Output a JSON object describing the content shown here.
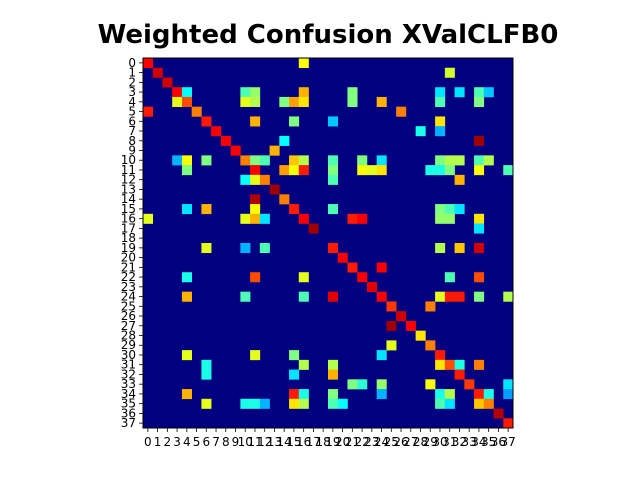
{
  "chart_data": {
    "type": "heatmap",
    "title": "Weighted Confusion XValCLFB0",
    "colormap": "jet",
    "value_range": [
      0,
      1
    ],
    "row_labels": [
      "0",
      "1",
      "2",
      "3",
      "4",
      "5",
      "6",
      "7",
      "8",
      "9",
      "10",
      "11",
      "12",
      "13",
      "14",
      "15",
      "16",
      "17",
      "18",
      "19",
      "20",
      "21",
      "22",
      "23",
      "24",
      "25",
      "26",
      "27",
      "28",
      "29",
      "30",
      "31",
      "32",
      "33",
      "34",
      "35",
      "36",
      "37"
    ],
    "col_labels": [
      "0",
      "1",
      "2",
      "3",
      "4",
      "5",
      "6",
      "7",
      "8",
      "9",
      "10",
      "11",
      "12",
      "13",
      "14",
      "15",
      "16",
      "17",
      "18",
      "19",
      "20",
      "21",
      "22",
      "23",
      "24",
      "25",
      "26",
      "27",
      "28",
      "29",
      "30",
      "31",
      "32",
      "33",
      "34",
      "35",
      "36",
      "37"
    ],
    "cells": [
      {
        "r": 0,
        "c": 0,
        "v": 0.88
      },
      {
        "r": 0,
        "c": 16,
        "v": 0.62
      },
      {
        "r": 1,
        "c": 1,
        "v": 0.92
      },
      {
        "r": 1,
        "c": 31,
        "v": 0.58
      },
      {
        "r": 2,
        "c": 2,
        "v": 0.92
      },
      {
        "r": 3,
        "c": 3,
        "v": 0.88
      },
      {
        "r": 3,
        "c": 4,
        "v": 0.38
      },
      {
        "r": 3,
        "c": 10,
        "v": 0.45
      },
      {
        "r": 3,
        "c": 11,
        "v": 0.52
      },
      {
        "r": 3,
        "c": 16,
        "v": 0.7
      },
      {
        "r": 3,
        "c": 21,
        "v": 0.5
      },
      {
        "r": 3,
        "c": 30,
        "v": 0.35
      },
      {
        "r": 3,
        "c": 32,
        "v": 0.35
      },
      {
        "r": 3,
        "c": 34,
        "v": 0.45
      },
      {
        "r": 3,
        "c": 35,
        "v": 0.32
      },
      {
        "r": 4,
        "c": 3,
        "v": 0.6
      },
      {
        "r": 4,
        "c": 4,
        "v": 0.8
      },
      {
        "r": 4,
        "c": 10,
        "v": 0.6
      },
      {
        "r": 4,
        "c": 11,
        "v": 0.55
      },
      {
        "r": 4,
        "c": 14,
        "v": 0.5
      },
      {
        "r": 4,
        "c": 15,
        "v": 0.72
      },
      {
        "r": 4,
        "c": 16,
        "v": 0.65
      },
      {
        "r": 4,
        "c": 21,
        "v": 0.5
      },
      {
        "r": 4,
        "c": 24,
        "v": 0.7
      },
      {
        "r": 4,
        "c": 30,
        "v": 0.45
      },
      {
        "r": 4,
        "c": 34,
        "v": 0.5
      },
      {
        "r": 5,
        "c": 0,
        "v": 0.85
      },
      {
        "r": 5,
        "c": 5,
        "v": 0.75
      },
      {
        "r": 5,
        "c": 26,
        "v": 0.75
      },
      {
        "r": 6,
        "c": 6,
        "v": 0.85
      },
      {
        "r": 6,
        "c": 11,
        "v": 0.7
      },
      {
        "r": 6,
        "c": 15,
        "v": 0.5
      },
      {
        "r": 6,
        "c": 19,
        "v": 0.32
      },
      {
        "r": 6,
        "c": 30,
        "v": 0.65
      },
      {
        "r": 7,
        "c": 7,
        "v": 0.88
      },
      {
        "r": 7,
        "c": 28,
        "v": 0.4
      },
      {
        "r": 7,
        "c": 30,
        "v": 0.3
      },
      {
        "r": 8,
        "c": 8,
        "v": 0.88
      },
      {
        "r": 8,
        "c": 14,
        "v": 0.38
      },
      {
        "r": 8,
        "c": 34,
        "v": 0.97
      },
      {
        "r": 9,
        "c": 9,
        "v": 0.88
      },
      {
        "r": 9,
        "c": 13,
        "v": 0.7
      },
      {
        "r": 10,
        "c": 3,
        "v": 0.3
      },
      {
        "r": 10,
        "c": 4,
        "v": 0.62
      },
      {
        "r": 10,
        "c": 6,
        "v": 0.5
      },
      {
        "r": 10,
        "c": 10,
        "v": 0.75
      },
      {
        "r": 10,
        "c": 11,
        "v": 0.5
      },
      {
        "r": 10,
        "c": 12,
        "v": 0.45
      },
      {
        "r": 10,
        "c": 15,
        "v": 0.68
      },
      {
        "r": 10,
        "c": 16,
        "v": 0.55
      },
      {
        "r": 10,
        "c": 19,
        "v": 0.45
      },
      {
        "r": 10,
        "c": 22,
        "v": 0.5
      },
      {
        "r": 10,
        "c": 24,
        "v": 0.35
      },
      {
        "r": 10,
        "c": 30,
        "v": 0.5
      },
      {
        "r": 10,
        "c": 31,
        "v": 0.55
      },
      {
        "r": 10,
        "c": 32,
        "v": 0.55
      },
      {
        "r": 10,
        "c": 34,
        "v": 0.45
      },
      {
        "r": 10,
        "c": 35,
        "v": 0.55
      },
      {
        "r": 11,
        "c": 4,
        "v": 0.5
      },
      {
        "r": 11,
        "c": 11,
        "v": 0.88
      },
      {
        "r": 11,
        "c": 14,
        "v": 0.72
      },
      {
        "r": 11,
        "c": 15,
        "v": 0.62
      },
      {
        "r": 11,
        "c": 16,
        "v": 0.85
      },
      {
        "r": 11,
        "c": 19,
        "v": 0.5
      },
      {
        "r": 11,
        "c": 22,
        "v": 0.62
      },
      {
        "r": 11,
        "c": 23,
        "v": 0.6
      },
      {
        "r": 11,
        "c": 24,
        "v": 0.65
      },
      {
        "r": 11,
        "c": 29,
        "v": 0.4
      },
      {
        "r": 11,
        "c": 30,
        "v": 0.4
      },
      {
        "r": 11,
        "c": 31,
        "v": 0.5
      },
      {
        "r": 11,
        "c": 34,
        "v": 0.62
      },
      {
        "r": 11,
        "c": 37,
        "v": 0.45
      },
      {
        "r": 12,
        "c": 10,
        "v": 0.38
      },
      {
        "r": 12,
        "c": 11,
        "v": 0.6
      },
      {
        "r": 12,
        "c": 12,
        "v": 0.75
      },
      {
        "r": 12,
        "c": 19,
        "v": 0.45
      },
      {
        "r": 12,
        "c": 32,
        "v": 0.7
      },
      {
        "r": 13,
        "c": 13,
        "v": 0.97
      },
      {
        "r": 14,
        "c": 11,
        "v": 0.95
      },
      {
        "r": 14,
        "c": 14,
        "v": 0.75
      },
      {
        "r": 15,
        "c": 4,
        "v": 0.35
      },
      {
        "r": 15,
        "c": 6,
        "v": 0.7
      },
      {
        "r": 15,
        "c": 11,
        "v": 0.62
      },
      {
        "r": 15,
        "c": 15,
        "v": 0.85
      },
      {
        "r": 15,
        "c": 19,
        "v": 0.45
      },
      {
        "r": 15,
        "c": 30,
        "v": 0.5
      },
      {
        "r": 15,
        "c": 31,
        "v": 0.45
      },
      {
        "r": 15,
        "c": 32,
        "v": 0.35
      },
      {
        "r": 16,
        "c": 0,
        "v": 0.6
      },
      {
        "r": 16,
        "c": 10,
        "v": 0.6
      },
      {
        "r": 16,
        "c": 11,
        "v": 0.7
      },
      {
        "r": 16,
        "c": 12,
        "v": 0.35
      },
      {
        "r": 16,
        "c": 16,
        "v": 0.88
      },
      {
        "r": 16,
        "c": 21,
        "v": 0.85
      },
      {
        "r": 16,
        "c": 22,
        "v": 0.88
      },
      {
        "r": 16,
        "c": 30,
        "v": 0.52
      },
      {
        "r": 16,
        "c": 31,
        "v": 0.52
      },
      {
        "r": 16,
        "c": 34,
        "v": 0.65
      },
      {
        "r": 17,
        "c": 17,
        "v": 0.97
      },
      {
        "r": 17,
        "c": 34,
        "v": 0.35
      },
      {
        "r": 19,
        "c": 6,
        "v": 0.6
      },
      {
        "r": 19,
        "c": 10,
        "v": 0.3
      },
      {
        "r": 19,
        "c": 12,
        "v": 0.45
      },
      {
        "r": 19,
        "c": 19,
        "v": 0.85
      },
      {
        "r": 19,
        "c": 30,
        "v": 0.55
      },
      {
        "r": 19,
        "c": 32,
        "v": 0.68
      },
      {
        "r": 19,
        "c": 34,
        "v": 0.92
      },
      {
        "r": 20,
        "c": 20,
        "v": 0.88
      },
      {
        "r": 21,
        "c": 21,
        "v": 0.85
      },
      {
        "r": 21,
        "c": 24,
        "v": 0.88
      },
      {
        "r": 22,
        "c": 4,
        "v": 0.4
      },
      {
        "r": 22,
        "c": 11,
        "v": 0.8
      },
      {
        "r": 22,
        "c": 16,
        "v": 0.6
      },
      {
        "r": 22,
        "c": 22,
        "v": 0.88
      },
      {
        "r": 22,
        "c": 31,
        "v": 0.45
      },
      {
        "r": 22,
        "c": 34,
        "v": 0.8
      },
      {
        "r": 23,
        "c": 23,
        "v": 0.9
      },
      {
        "r": 24,
        "c": 4,
        "v": 0.7
      },
      {
        "r": 24,
        "c": 10,
        "v": 0.45
      },
      {
        "r": 24,
        "c": 16,
        "v": 0.45
      },
      {
        "r": 24,
        "c": 19,
        "v": 0.9
      },
      {
        "r": 24,
        "c": 24,
        "v": 0.88
      },
      {
        "r": 24,
        "c": 30,
        "v": 0.6
      },
      {
        "r": 24,
        "c": 31,
        "v": 0.85
      },
      {
        "r": 24,
        "c": 32,
        "v": 0.85
      },
      {
        "r": 24,
        "c": 34,
        "v": 0.5
      },
      {
        "r": 24,
        "c": 37,
        "v": 0.55
      },
      {
        "r": 25,
        "c": 25,
        "v": 0.82
      },
      {
        "r": 25,
        "c": 29,
        "v": 0.75
      },
      {
        "r": 26,
        "c": 26,
        "v": 0.92
      },
      {
        "r": 27,
        "c": 25,
        "v": 0.97
      },
      {
        "r": 27,
        "c": 27,
        "v": 0.88
      },
      {
        "r": 28,
        "c": 28,
        "v": 0.65
      },
      {
        "r": 29,
        "c": 25,
        "v": 0.6
      },
      {
        "r": 29,
        "c": 29,
        "v": 0.75
      },
      {
        "r": 30,
        "c": 4,
        "v": 0.6
      },
      {
        "r": 30,
        "c": 11,
        "v": 0.6
      },
      {
        "r": 30,
        "c": 15,
        "v": 0.5
      },
      {
        "r": 30,
        "c": 24,
        "v": 0.35
      },
      {
        "r": 30,
        "c": 30,
        "v": 0.85
      },
      {
        "r": 31,
        "c": 6,
        "v": 0.4
      },
      {
        "r": 31,
        "c": 16,
        "v": 0.55
      },
      {
        "r": 31,
        "c": 19,
        "v": 0.55
      },
      {
        "r": 31,
        "c": 30,
        "v": 0.65
      },
      {
        "r": 31,
        "c": 31,
        "v": 0.8
      },
      {
        "r": 31,
        "c": 32,
        "v": 0.4
      },
      {
        "r": 31,
        "c": 34,
        "v": 0.75
      },
      {
        "r": 32,
        "c": 6,
        "v": 0.4
      },
      {
        "r": 32,
        "c": 15,
        "v": 0.35
      },
      {
        "r": 32,
        "c": 19,
        "v": 0.7
      },
      {
        "r": 32,
        "c": 32,
        "v": 0.85
      },
      {
        "r": 33,
        "c": 21,
        "v": 0.5
      },
      {
        "r": 33,
        "c": 22,
        "v": 0.42
      },
      {
        "r": 33,
        "c": 24,
        "v": 0.52
      },
      {
        "r": 33,
        "c": 29,
        "v": 0.62
      },
      {
        "r": 33,
        "c": 33,
        "v": 0.82
      },
      {
        "r": 33,
        "c": 37,
        "v": 0.35
      },
      {
        "r": 34,
        "c": 4,
        "v": 0.7
      },
      {
        "r": 34,
        "c": 15,
        "v": 0.85
      },
      {
        "r": 34,
        "c": 16,
        "v": 0.4
      },
      {
        "r": 34,
        "c": 19,
        "v": 0.5
      },
      {
        "r": 34,
        "c": 24,
        "v": 0.3
      },
      {
        "r": 34,
        "c": 30,
        "v": 0.4
      },
      {
        "r": 34,
        "c": 31,
        "v": 0.55
      },
      {
        "r": 34,
        "c": 34,
        "v": 0.85
      },
      {
        "r": 34,
        "c": 35,
        "v": 0.4
      },
      {
        "r": 34,
        "c": 37,
        "v": 0.28
      },
      {
        "r": 35,
        "c": 6,
        "v": 0.6
      },
      {
        "r": 35,
        "c": 10,
        "v": 0.4
      },
      {
        "r": 35,
        "c": 11,
        "v": 0.4
      },
      {
        "r": 35,
        "c": 12,
        "v": 0.3
      },
      {
        "r": 35,
        "c": 15,
        "v": 0.65
      },
      {
        "r": 35,
        "c": 16,
        "v": 0.55
      },
      {
        "r": 35,
        "c": 19,
        "v": 0.45
      },
      {
        "r": 35,
        "c": 20,
        "v": 0.38
      },
      {
        "r": 35,
        "c": 30,
        "v": 0.45
      },
      {
        "r": 35,
        "c": 31,
        "v": 0.35
      },
      {
        "r": 35,
        "c": 34,
        "v": 0.68
      },
      {
        "r": 35,
        "c": 35,
        "v": 0.75
      },
      {
        "r": 36,
        "c": 36,
        "v": 0.95
      },
      {
        "r": 37,
        "c": 37,
        "v": 0.85
      }
    ]
  }
}
